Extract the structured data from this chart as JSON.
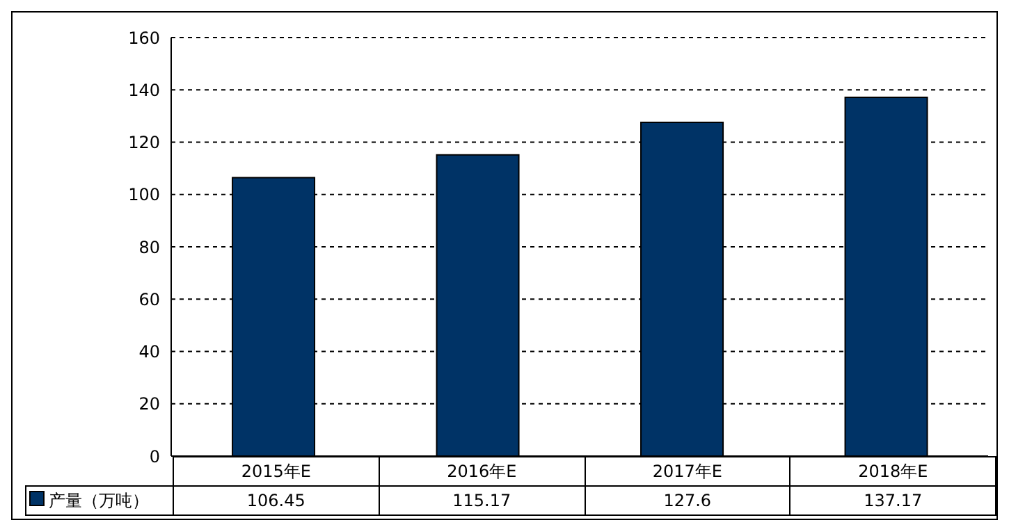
{
  "chart_data": {
    "type": "bar",
    "categories": [
      "2015年E",
      "2016年E",
      "2017年E",
      "2018年E"
    ],
    "series": [
      {
        "name": "产量（万吨）",
        "color": "#003366",
        "values": [
          106.45,
          115.17,
          127.6,
          137.17
        ]
      }
    ],
    "ylim": [
      0,
      160
    ],
    "yticks": [
      0,
      20,
      40,
      60,
      80,
      100,
      120,
      140,
      160
    ],
    "grid": "y",
    "legend": "bottom",
    "data_labels": true
  }
}
